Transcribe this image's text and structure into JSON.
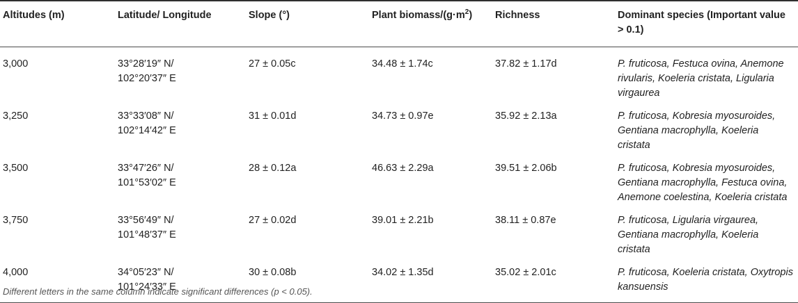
{
  "table": {
    "headers": {
      "altitude": "Altitudes (m)",
      "latlon": "Latitude/ Longitude",
      "slope": "Slope (°)",
      "biomass_main": "Plant biomass/(g·m",
      "biomass_sup": "2",
      "biomass_close": ")",
      "richness": "Richness",
      "dominant": "Dominant species (Important value > 0.1)"
    },
    "rows": [
      {
        "altitude": "3,000",
        "lat": "33°28′19″ N/",
        "lon": "102°20′37″ E",
        "slope": "27 ± 0.05c",
        "biomass": "34.48 ± 1.74c",
        "richness": "37.82 ± 1.17d",
        "species": "P. fruticosa, Festuca ovina, Anemone rivularis, Koeleria cristata, Ligularia virgaurea"
      },
      {
        "altitude": "3,250",
        "lat": "33°33′08″ N/",
        "lon": "102°14′42″ E",
        "slope": "31 ± 0.01d",
        "biomass": "34.73 ± 0.97e",
        "richness": "35.92 ± 2.13a",
        "species": "P. fruticosa, Kobresia myosuroides, Gentiana macrophylla, Koeleria cristata"
      },
      {
        "altitude": "3,500",
        "lat": "33°47′26″ N/",
        "lon": "101°53′02″ E",
        "slope": "28 ± 0.12a",
        "biomass": "46.63 ± 2.29a",
        "richness": "39.51 ± 2.06b",
        "species": "P. fruticosa, Kobresia myosuroides, Gentiana macrophylla, Festuca ovina, Anemone coelestina, Koeleria cristata"
      },
      {
        "altitude": "3,750",
        "lat": "33°56′49″ N/",
        "lon": "101°48′37″ E",
        "slope": "27 ± 0.02d",
        "biomass": "39.01 ± 2.21b",
        "richness": "38.11 ± 0.87e",
        "species": "P. fruticosa, Ligularia virgaurea, Gentiana macrophylla, Koeleria cristata"
      },
      {
        "altitude": "4,000",
        "lat": "34°05′23″ N/",
        "lon": "101°24′33″ E",
        "slope": "30 ± 0.08b",
        "biomass": "34.02 ± 1.35d",
        "richness": "35.02 ± 2.01c",
        "species": "P. fruticosa, Koeleria cristata, Oxytropis kansuensis"
      }
    ]
  },
  "footnote": "Different letters in the same column indicate significant differences (p < 0.05)."
}
